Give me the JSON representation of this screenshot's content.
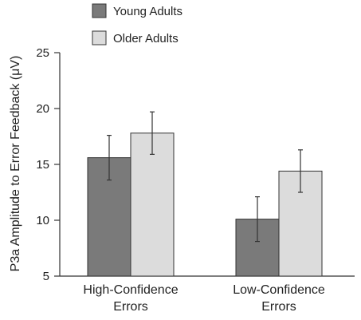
{
  "chart_data": {
    "type": "bar",
    "title": "",
    "xlabel": "",
    "ylabel": "P3a Amplitude to Error Feedback (μV)",
    "ylim": [
      5,
      25
    ],
    "yticks": [
      "5",
      "10",
      "15",
      "20",
      "25"
    ],
    "grid": false,
    "legend_position": "top-left",
    "categories": [
      [
        "High-Confidence",
        "Errors"
      ],
      [
        "Low-Confidence",
        "Errors"
      ]
    ],
    "series": [
      {
        "name": "Young Adults",
        "color": "#7a7a7a",
        "values": [
          15.6,
          10.1
        ],
        "error": [
          2.0,
          2.0
        ]
      },
      {
        "name": "Older Adults",
        "color": "#dcdcdc",
        "values": [
          17.8,
          14.4
        ],
        "error": [
          1.9,
          1.9
        ]
      }
    ]
  }
}
